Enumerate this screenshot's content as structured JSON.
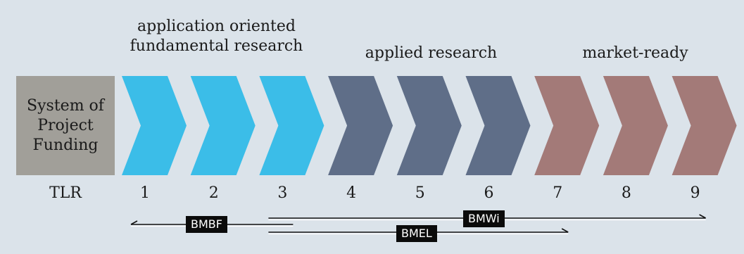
{
  "phases": {
    "fundamental": "application oriented\nfundamental research",
    "applied": "applied research",
    "market": "market-ready"
  },
  "system_box": "System of\nProject\nFunding",
  "tlr": {
    "label": "TLR",
    "levels": [
      "1",
      "2",
      "3",
      "4",
      "5",
      "6",
      "7",
      "8",
      "9"
    ]
  },
  "chevrons": [
    {
      "level": 1,
      "color": "#3bbde8"
    },
    {
      "level": 2,
      "color": "#3bbde8"
    },
    {
      "level": 3,
      "color": "#3bbde8"
    },
    {
      "level": 4,
      "color": "#5f6e88"
    },
    {
      "level": 5,
      "color": "#5f6e88"
    },
    {
      "level": 6,
      "color": "#5f6e88"
    },
    {
      "level": 7,
      "color": "#a37a78"
    },
    {
      "level": 8,
      "color": "#a37a78"
    },
    {
      "level": 9,
      "color": "#a37a78"
    }
  ],
  "ministries": [
    {
      "name": "BMBF",
      "from_tlr": 1,
      "to_tlr": 3
    },
    {
      "name": "BMWi",
      "from_tlr": 3,
      "to_tlr": 9
    },
    {
      "name": "BMEL",
      "from_tlr": 3,
      "to_tlr": 7
    }
  ]
}
